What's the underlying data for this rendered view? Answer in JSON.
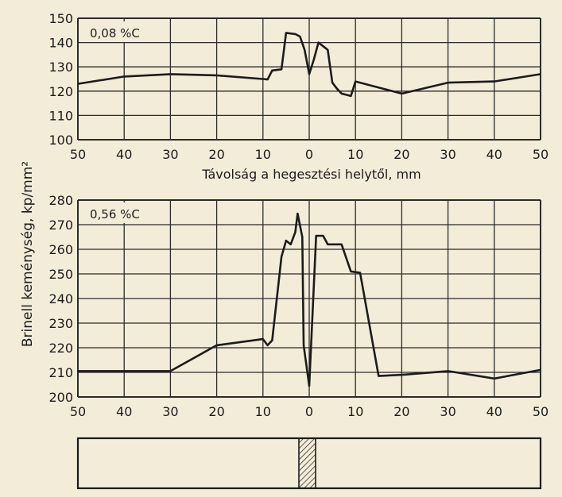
{
  "y_axis_label": "Brinell keménység, kp/mm²",
  "x_axis_label": "Távolság a hegesztési helytől, mm",
  "colors": {
    "background": "#f3ecd9",
    "ink": "#1c1c1c",
    "grid": "#2b2b2b"
  },
  "chart_data": [
    {
      "type": "line",
      "annotation": "0,08 %C",
      "xlabel": "Távolság a hegesztési helytől, mm",
      "x_tick_labels": [
        "50",
        "40",
        "30",
        "20",
        "10",
        "0",
        "10",
        "20",
        "30",
        "40",
        "50"
      ],
      "y_ticks": [
        100,
        110,
        120,
        130,
        140,
        150
      ],
      "ylim": [
        100,
        150
      ],
      "xlim": [
        -50,
        50
      ],
      "grid": true,
      "series": [
        {
          "points": [
            [
              -50,
              123
            ],
            [
              -40,
              126
            ],
            [
              -30,
              127
            ],
            [
              -20,
              126.5
            ],
            [
              -10,
              125
            ],
            [
              -9,
              124.8
            ],
            [
              -8,
              128.5
            ],
            [
              -6,
              129
            ],
            [
              -5,
              144
            ],
            [
              -3,
              143.5
            ],
            [
              -2,
              142.5
            ],
            [
              -1,
              137
            ],
            [
              0,
              127
            ],
            [
              1,
              133
            ],
            [
              2,
              140
            ],
            [
              3,
              138.5
            ],
            [
              4,
              137
            ],
            [
              5,
              123.5
            ],
            [
              6,
              121
            ],
            [
              7,
              119
            ],
            [
              8,
              118.5
            ],
            [
              9,
              118
            ],
            [
              10,
              124
            ],
            [
              20,
              119
            ],
            [
              30,
              123.5
            ],
            [
              40,
              124
            ],
            [
              50,
              127
            ]
          ]
        }
      ]
    },
    {
      "type": "line",
      "annotation": "0,56 %C",
      "x_tick_labels": [
        "50",
        "40",
        "30",
        "20",
        "10",
        "0",
        "10",
        "20",
        "30",
        "40",
        "50"
      ],
      "y_ticks": [
        200,
        210,
        220,
        230,
        240,
        250,
        260,
        270,
        280
      ],
      "ylim": [
        200,
        280
      ],
      "xlim": [
        -50,
        50
      ],
      "grid": true,
      "series": [
        {
          "points": [
            [
              -50,
              210.5
            ],
            [
              -40,
              210.5
            ],
            [
              -30,
              210.5
            ],
            [
              -20,
              221
            ],
            [
              -10,
              223.5
            ],
            [
              -9,
              221
            ],
            [
              -8,
              223
            ],
            [
              -6,
              257
            ],
            [
              -5,
              263.5
            ],
            [
              -4,
              262
            ],
            [
              -3,
              267
            ],
            [
              -2.5,
              274.5
            ],
            [
              -1.5,
              265
            ],
            [
              -1.2,
              221
            ],
            [
              0,
              204.5
            ],
            [
              1.5,
              265.5
            ],
            [
              3,
              265.5
            ],
            [
              4,
              262
            ],
            [
              7,
              262
            ],
            [
              9,
              251
            ],
            [
              11,
              250.5
            ],
            [
              15,
              208.5
            ],
            [
              20,
              209
            ],
            [
              30,
              210.5
            ],
            [
              40,
              207.5
            ],
            [
              50,
              211
            ]
          ]
        }
      ]
    }
  ]
}
